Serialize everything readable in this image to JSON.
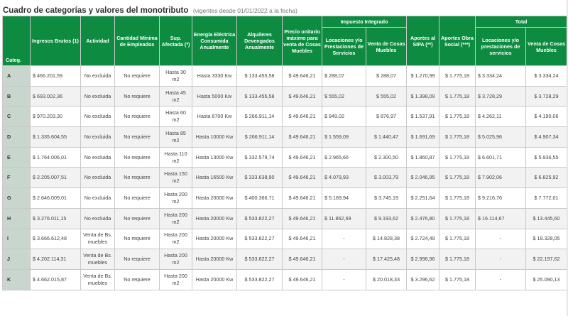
{
  "title": "Cuadro de categorías y valores del monotributo",
  "subtitle": "(vigentes desde 01/01/2022 a la fecha)",
  "group_headers": {
    "impuesto": "Impuesto Integrado",
    "total": "Total"
  },
  "columns": {
    "categ": "Categ.",
    "ingresos": "Ingresos Brutos (1)",
    "actividad": "Actividad",
    "empleados": "Cantidad Mínima de Empleados",
    "superficie": "Sup. Afectada (*)",
    "energia": "Energía Eléctrica Consumida Anualmente",
    "alquileres": "Alquileres Devengados Anualmente",
    "precio": "Precio unitario máximo para venta de Cosas Muebles",
    "imp_servicios": "Locaciones y/o Prestaciones de Servicios",
    "imp_muebles": "Venta de Cosas Muebles",
    "sipa": "Aportes al SIPA (**)",
    "obra_social": "Aportes Obra Social (***)",
    "total_servicios": "Locaciones y/o prestaciones de servicios",
    "total_muebles": "Venta de Cosas Muebles"
  },
  "rows": [
    {
      "categ": "A",
      "ingresos": "$ 466.201,59",
      "actividad": "No excluida",
      "empleados": "No requiere",
      "superficie": "Hasta 30 m2",
      "energia": "Hasta 3330 Kw",
      "alquileres": "$ 133.455,58",
      "precio": "$ 49.646,21",
      "imp_servicios": "$ 288,07",
      "imp_muebles": "$ 288,07",
      "sipa": "$ 1.270,99",
      "obra_social": "$ 1.775,18",
      "total_servicios": "$ 3.334,24",
      "total_muebles": "$ 3.334,24"
    },
    {
      "categ": "B",
      "ingresos": "$ 693.002,36",
      "actividad": "No excluida",
      "empleados": "No requiere",
      "superficie": "Hasta 45 m2",
      "energia": "Hasta 5000 Kw",
      "alquileres": "$ 133.455,58",
      "precio": "$ 49.646,21",
      "imp_servicios": "$ 555,02",
      "imp_muebles": "$ 555,02",
      "sipa": "$ 1.398,09",
      "obra_social": "$ 1.775,18",
      "total_servicios": "$ 3.728,29",
      "total_muebles": "$ 3.728,29"
    },
    {
      "categ": "C",
      "ingresos": "$ 970.203,30",
      "actividad": "No excluida",
      "empleados": "No requiere",
      "superficie": "Hasta 60 m2",
      "energia": "Hasta 6700 Kw",
      "alquileres": "$ 266.911,14",
      "precio": "$ 49.646,21",
      "imp_servicios": "$ 949,02",
      "imp_muebles": "$ 876,97",
      "sipa": "$ 1.537,91",
      "obra_social": "$ 1.775,18",
      "total_servicios": "$ 4.262,11",
      "total_muebles": "$ 4.190,06"
    },
    {
      "categ": "D",
      "ingresos": "$ 1.335.604,55",
      "actividad": "No excluida",
      "empleados": "No requiere",
      "superficie": "Hasta 85 m2",
      "energia": "Hasta 10000 Kw",
      "alquileres": "$ 266.911,14",
      "precio": "$ 49.646,21",
      "imp_servicios": "$ 1.559,09",
      "imp_muebles": "$ 1.440,47",
      "sipa": "$ 1.691,69",
      "obra_social": "$ 1.775,18",
      "total_servicios": "$ 5.025,96",
      "total_muebles": "$ 4.907,34"
    },
    {
      "categ": "E",
      "ingresos": "$ 1.764.006,01",
      "actividad": "No excluida",
      "empleados": "No requiere",
      "superficie": "Hasta 110 m2",
      "energia": "Hasta 13000 Kw",
      "alquileres": "$ 332.579,74",
      "precio": "$ 49.646,21",
      "imp_servicios": "$ 2.965,66",
      "imp_muebles": "$ 2.300,50",
      "sipa": "$ 1.860,87",
      "obra_social": "$ 1.775,18",
      "total_servicios": "$ 6.601,71",
      "total_muebles": "$ 5.936,55"
    },
    {
      "categ": "F",
      "ingresos": "$ 2.205.007,51",
      "actividad": "No excluida",
      "empleados": "No requiere",
      "superficie": "Hasta 150 m2",
      "energia": "Hasta 16500 Kw",
      "alquileres": "$ 333.638,90",
      "precio": "$ 49.646,21",
      "imp_servicios": "$ 4.079,93",
      "imp_muebles": "$ 3.003,79",
      "sipa": "$ 2.046,95",
      "obra_social": "$ 1.775,18",
      "total_servicios": "$ 7.902,06",
      "total_muebles": "$ 6.825,92"
    },
    {
      "categ": "G",
      "ingresos": "$ 2.646.009,01",
      "actividad": "No excluida",
      "empleados": "No requiere",
      "superficie": "Hasta 200 m2",
      "energia": "Hasta 20000 Kw",
      "alquileres": "$ 400.366,71",
      "precio": "$ 49.646,21",
      "imp_servicios": "$ 5.189,94",
      "imp_muebles": "$ 3.745,19",
      "sipa": "$ 2.251,64",
      "obra_social": "$ 1.775,18",
      "total_servicios": "$ 9.216,76",
      "total_muebles": "$ 7.772,01"
    },
    {
      "categ": "H",
      "ingresos": "$ 3.276.011,15",
      "actividad": "No excluida",
      "empleados": "No requiere",
      "superficie": "Hasta 200 m2",
      "energia": "Hasta 20000 Kw",
      "alquileres": "$ 533.822,27",
      "precio": "$ 49.646,21",
      "imp_servicios": "$ 11.862,69",
      "imp_muebles": "$ 9.193,62",
      "sipa": "$ 2.476,80",
      "obra_social": "$ 1.775,18",
      "total_servicios": "$ 16.114,67",
      "total_muebles": "$ 13.445,60"
    },
    {
      "categ": "I",
      "ingresos": "$ 3.666.612,48",
      "actividad": "Venta de Bs. muebles",
      "empleados": "No requiere",
      "superficie": "Hasta 200 m2",
      "energia": "Hasta 20000 Kw",
      "alquileres": "$ 533.822,27",
      "precio": "$ 49.646,21",
      "imp_servicios": "-",
      "imp_muebles": "$ 14.828,38",
      "sipa": "$ 2.724,49",
      "obra_social": "$ 1.775,18",
      "total_servicios": "-",
      "total_muebles": "$ 19.328,05"
    },
    {
      "categ": "J",
      "ingresos": "$ 4.202.114,31",
      "actividad": "Venta de Bs. muebles",
      "empleados": "No requiere",
      "superficie": "Hasta 200 m2",
      "energia": "Hasta 20000 Kw",
      "alquileres": "$ 533.822,27",
      "precio": "$ 49.646,21",
      "imp_servicios": "-",
      "imp_muebles": "$ 17.425,48",
      "sipa": "$ 2.996,96",
      "obra_social": "$ 1.775,18",
      "total_servicios": "-",
      "total_muebles": "$ 22.197,62"
    },
    {
      "categ": "K",
      "ingresos": "$ 4.662.015,87",
      "actividad": "Venta de Bs. muebles",
      "empleados": "No requiere",
      "superficie": "Hasta 200 m2",
      "energia": "Hasta 20000 Kw",
      "alquileres": "$ 533.822,27",
      "precio": "$ 49.646,21",
      "imp_servicios": "-",
      "imp_muebles": "$ 20.018,33",
      "sipa": "$ 3.296,62",
      "obra_social": "$ 1.775,18",
      "total_servicios": "-",
      "total_muebles": "$ 25.090,13"
    }
  ]
}
